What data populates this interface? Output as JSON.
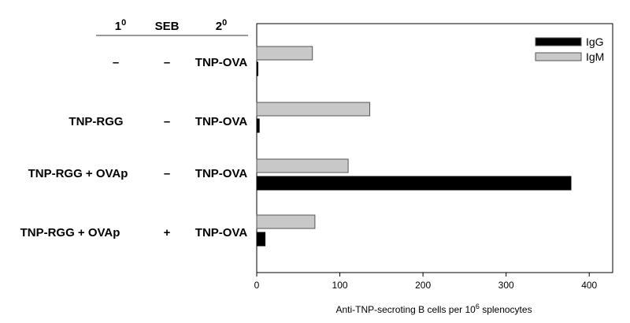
{
  "chart_data": {
    "type": "bar",
    "orientation": "horizontal",
    "row_label_headers": [
      {
        "base": "1",
        "sup": "0"
      },
      {
        "base": "SEB",
        "sup": ""
      },
      {
        "base": "2",
        "sup": "0"
      }
    ],
    "rows": [
      {
        "primary": "–",
        "seb": "–",
        "secondary": "TNP-OVA"
      },
      {
        "primary": "TNP-RGG",
        "seb": "–",
        "secondary": "TNP-OVA"
      },
      {
        "primary": "TNP-RGG + OVAp",
        "seb": "–",
        "secondary": "TNP-OVA"
      },
      {
        "primary": "TNP-RGG + OVAp",
        "seb": "+",
        "secondary": "TNP-OVA"
      }
    ],
    "series": [
      {
        "name": "IgG",
        "color": "#000000",
        "values": [
          1,
          3,
          378,
          10
        ]
      },
      {
        "name": "IgM",
        "color": "#c8c8c8",
        "values": [
          67,
          136,
          110,
          70
        ]
      }
    ],
    "xlabel": {
      "pre": "Anti-TNP-secroting B cells per 10",
      "sup": "6",
      "post": " splenocytes"
    },
    "xlim": [
      0,
      400
    ],
    "xticks": [
      0,
      100,
      200,
      300,
      400
    ],
    "legend_position": "top-right",
    "grid": false
  }
}
